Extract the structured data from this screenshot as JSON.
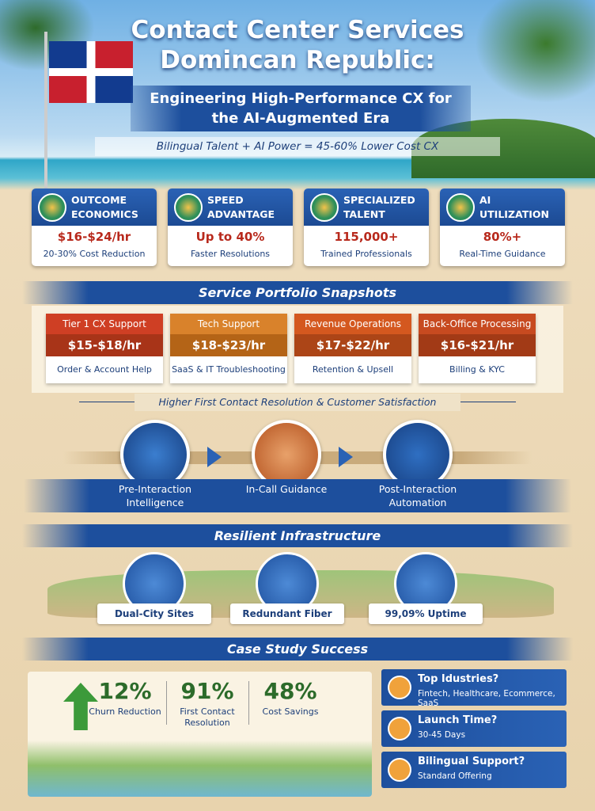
{
  "header": {
    "title_lines": [
      "Contact Center Services",
      "Domincan Republic:"
    ],
    "subtitle": "Engineering High-Performance CX for the AI-Augmented Era",
    "tagline": "Bilingual Talent + AI Power = 45-60% Lower Cost CX"
  },
  "stats": [
    {
      "title": "OUTCOME ECONOMICS",
      "value": "$16-$24/hr",
      "note": "20-30% Cost Reduction"
    },
    {
      "title": "SPEED ADVANTAGE",
      "value": "Up to 40%",
      "note": "Faster Resolutions"
    },
    {
      "title": "SPECIALIZED TALENT",
      "value": "115,000+",
      "note": "Trained Professionals"
    },
    {
      "title": "AI UTILIZATION",
      "value": "80%+",
      "note": "Real-Time Guidance"
    }
  ],
  "portfolio": {
    "title": "Service Portfolio Snapshots",
    "services": [
      {
        "name": "Tier 1 CX Support",
        "rate": "$15-$18/hr",
        "note": "Order & Account Help"
      },
      {
        "name": "Tech Support",
        "rate": "$18-$23/hr",
        "note": "SaaS & IT Troubleshooting"
      },
      {
        "name": "Revenue Operations",
        "rate": "$17-$22/hr",
        "note": "Retention & Upsell"
      },
      {
        "name": "Back-Office Processing",
        "rate": "$16-$21/hr",
        "note": "Billing & KYC"
      }
    ],
    "banner": "Higher First Contact Resolution & Customer Satisfaction",
    "steps": [
      "Pre-Interaction Intelligence",
      "In-Call Guidance",
      "Post-Interaction Automation"
    ]
  },
  "infrastructure": {
    "title": "Resilient Infrastructure",
    "items": [
      "Dual-City Sites",
      "Redundant Fiber",
      "99,09% Uptime"
    ]
  },
  "case_study": {
    "title": "Case Study Success",
    "metrics": [
      {
        "value": "12%",
        "label": "Churn Reduction"
      },
      {
        "value": "91%",
        "label": "First Contact Resolution"
      },
      {
        "value": "48%",
        "label": "Cost Savings"
      }
    ],
    "faq": [
      {
        "question": "Top Idustries?",
        "answer": "Fintech, Healthcare, Ecommerce, SaaS"
      },
      {
        "question": "Launch Time?",
        "answer": "30-45 Days"
      },
      {
        "question": "Bilingual Support?",
        "answer": "Standard Offering"
      }
    ]
  }
}
